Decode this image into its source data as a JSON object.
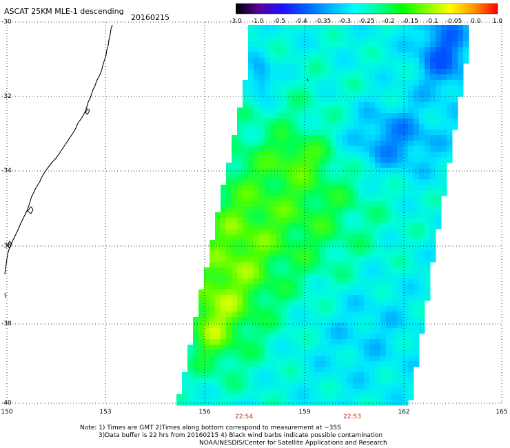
{
  "header": {
    "title": "ASCAT 25KM MLE-1 descending",
    "date": "20160215"
  },
  "colorbar": {
    "labels": [
      "-3.0",
      "-1.0",
      "-0.5",
      "-0.4",
      "-0.35",
      "-0.3",
      "-0.25",
      "-0.2",
      "-0.15",
      "-0.1",
      "-0.05",
      "0.0",
      "1.0"
    ],
    "colors": [
      "#000000",
      "#5a00a0",
      "#1e10ff",
      "#0064ff",
      "#00b4ff",
      "#00ffff",
      "#00ff96",
      "#00ff00",
      "#80ff00",
      "#ffff00",
      "#ff9600",
      "#ff0000"
    ]
  },
  "map": {
    "lat_labels": [
      "-30",
      "-32",
      "-34",
      "-36",
      "-38",
      "-40"
    ],
    "lon_labels": [
      "150",
      "153",
      "156",
      "159",
      "162",
      "165"
    ],
    "times": [
      "22:54",
      "22:53"
    ],
    "grid_color": "#000000",
    "coast_color": "#000000"
  },
  "footer": {
    "line1": "Note: 1) Times are GMT 2)Times along bottom correspond to measurement at ~35S",
    "line2": "3)Data buffer is 22 hrs from 20160215 4) Black wind barbs indicate possible contamination",
    "line3": "NOAA/NESDIS/Center for Satellite Applications and Research"
  }
}
